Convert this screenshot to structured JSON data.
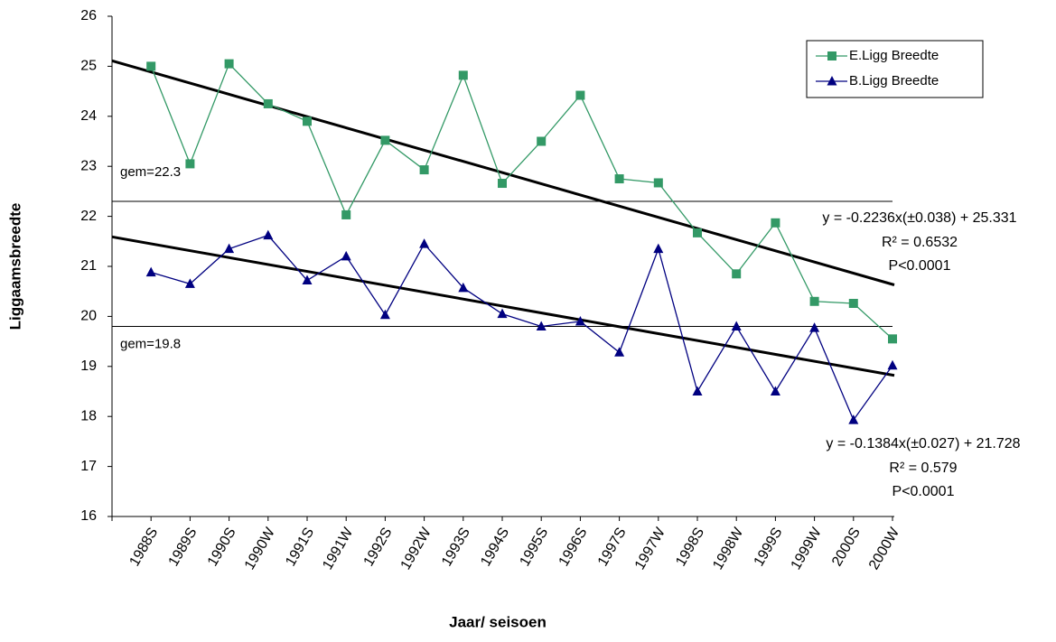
{
  "chart_data": {
    "type": "line",
    "x_label": "Jaar/ seisoen",
    "y_label": "Liggaamsbreedte",
    "categories": [
      "1988S",
      "1989S",
      "1990S",
      "1990W",
      "1991S",
      "1991W",
      "1992S",
      "1992W",
      "1993S",
      "1994S",
      "1995S",
      "1996S",
      "1997S",
      "1997W",
      "1998S",
      "1998W",
      "1999S",
      "1999W",
      "2000S",
      "2000W"
    ],
    "series": [
      {
        "name": "E.Ligg Breedte",
        "color": "#339966",
        "marker": "square",
        "values": [
          25.0,
          23.05,
          25.05,
          24.25,
          23.9,
          22.03,
          23.52,
          22.93,
          24.82,
          22.66,
          23.5,
          24.42,
          22.75,
          22.67,
          21.67,
          20.85,
          21.87,
          20.3,
          20.26,
          19.55
        ]
      },
      {
        "name": "B.Ligg Breedte",
        "color": "#000080",
        "marker": "triangle",
        "values": [
          20.88,
          20.65,
          21.35,
          21.62,
          20.72,
          21.2,
          20.03,
          21.45,
          20.57,
          20.05,
          19.8,
          19.9,
          19.28,
          21.35,
          18.5,
          19.8,
          18.5,
          19.77,
          17.93,
          19.02
        ]
      }
    ],
    "trendlines": [
      {
        "color": "#000000",
        "values": [
          25.11,
          20.63
        ]
      },
      {
        "color": "#000000",
        "values": [
          21.59,
          18.82
        ]
      }
    ],
    "hlines": [
      {
        "value": 22.3,
        "label": "gem=22.3"
      },
      {
        "value": 19.8,
        "label": "gem=19.8"
      }
    ],
    "annotations": [
      [
        "y = -0.2236x(±0.038) + 25.331",
        "R² = 0.6532",
        "P<0.0001"
      ],
      [
        "y = -0.1384x(±0.027) + 21.728",
        "R² = 0.579",
        "P<0.0001"
      ]
    ],
    "ylim": [
      16,
      26
    ],
    "yticks": [
      16,
      17,
      18,
      19,
      20,
      21,
      22,
      23,
      24,
      25,
      26
    ],
    "legend": "top-right"
  }
}
